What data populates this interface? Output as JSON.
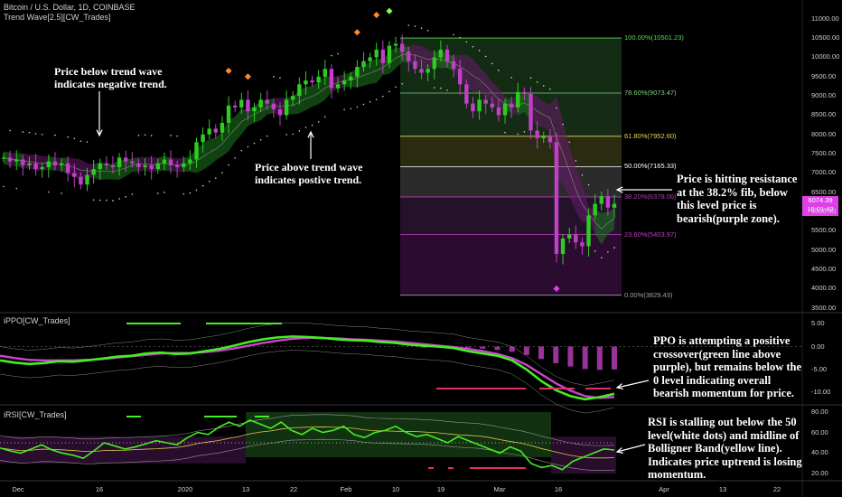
{
  "header": {
    "symbol": "Bitcoin / U.S. Dollar, 1D, COINBASE",
    "indicator": "Trend Wave[2.5][CW_Trades]"
  },
  "panes": {
    "ppo_title": "iPPO[CW_Trades]",
    "rsi_title": "iRSI[CW_Trades]"
  },
  "annotations": {
    "below_trend": "Price below trend wave\nindicates negative trend.",
    "above_trend": "Price above trend wave\nindicates postive trend.",
    "resistance": "Price is hitting resistance\nat the 38.2% fib, below\nthis level price is\nbearish(purple zone).",
    "ppo_note": "PPO is attempting a positive\ncrossover(green line above\npurple), but remains below the\n0 level indicating overall\nbearish momentum for price.",
    "rsi_note": "RSI is stalling out below the 50\nlevel(white dots) and midline of\nBolligner Band(yellow line).\nIndicates price uptrend is losing\nmomentum."
  },
  "price_tag": {
    "price": "6074.39",
    "countdown": "10:01:42"
  },
  "colors": {
    "bull": "#2ecc22",
    "bear": "#c040c8",
    "fib_top": "#2a5a2a",
    "fib_purple": "#3a1840",
    "rsi_zone": "#1f5a1f",
    "rsi_purple": "#4a1850",
    "ppo_green": "#44ee22",
    "ppo_purple": "#cc44cc",
    "red_dash": "#e0306a"
  },
  "chart_data": [
    {
      "type": "candlestick",
      "title": "Bitcoin / U.S. Dollar, 1D, COINBASE",
      "ylim": [
        3400,
        11300
      ],
      "y_ticks": [
        11000,
        10500,
        10000,
        9500,
        9000,
        8500,
        8000,
        7500,
        7000,
        6500,
        6000,
        5500,
        5000,
        4500,
        4000,
        3500
      ],
      "x_ticks": [
        "Dec",
        "16",
        "2020",
        "13",
        "22",
        "Feb",
        "10",
        "19",
        "Mar",
        "16",
        "Apr",
        "13",
        "22"
      ],
      "fib_levels": [
        {
          "label": "100.00%(10501.23)",
          "price": 10501.23,
          "color": "#55dd55"
        },
        {
          "label": "78.60%(9073.47)",
          "price": 9073.47,
          "color": "#7fcf7f"
        },
        {
          "label": "61.80%(7952.60)",
          "price": 7952.6,
          "color": "#e8d84a"
        },
        {
          "label": "50.00%(7165.33)",
          "price": 7165.33,
          "color": "#ffffff"
        },
        {
          "label": "38.20%(6378.06)",
          "price": 6378.06,
          "color": "#b040b0"
        },
        {
          "label": "23.60%(5403.97)",
          "price": 5403.97,
          "color": "#c040c0"
        },
        {
          "label": "0.00%(3829.43)",
          "price": 3829.43,
          "color": "#a0a0a0"
        }
      ],
      "close_series": [
        7400,
        7300,
        7350,
        7200,
        7250,
        7100,
        7150,
        7300,
        7200,
        7250,
        7000,
        6900,
        6700,
        6950,
        7100,
        7250,
        7200,
        7150,
        7400,
        7300,
        7250,
        7150,
        7200,
        7100,
        7250,
        7350,
        7200,
        7150,
        7250,
        7350,
        7800,
        8000,
        8150,
        8050,
        8300,
        8750,
        8700,
        8900,
        8600,
        8700,
        8900,
        8800,
        8650,
        8500,
        8900,
        9000,
        9300,
        9400,
        9350,
        9500,
        9700,
        9200,
        9300,
        9400,
        9500,
        9750,
        9900,
        10000,
        10200,
        9850,
        10300,
        10350,
        10150,
        9900,
        9700,
        9600,
        9700,
        10000,
        10200,
        9900,
        9700,
        9300,
        8800,
        8600,
        8900,
        8800,
        8700,
        8500,
        8800,
        8700,
        9100,
        9050,
        8100,
        7900,
        7950,
        7800,
        4900,
        5300,
        5400,
        5200,
        5100,
        5900,
        6200,
        6400,
        6100,
        6200
      ]
    },
    {
      "type": "line",
      "title": "iPPO[CW_Trades]",
      "ylim": [
        -12.5,
        7
      ],
      "y_ticks": [
        5.0,
        0.0,
        -5.0,
        -10.0
      ],
      "series": [
        {
          "name": "",
          "values": [
            -3,
            -3.5,
            -3.8,
            -3.6,
            -3.2,
            -3.3,
            -3.0,
            -2.6,
            -2.2,
            -2.0,
            -1.5,
            -1.3,
            -1.6,
            -1.5,
            -1.0,
            -0.5,
            0.2,
            1.0,
            1.6,
            2.0,
            2.2,
            2.1,
            1.9,
            1.6,
            1.4,
            1.3,
            1.0,
            0.8,
            0.4,
            0.2,
            0.0,
            -0.3,
            -1.0,
            -1.5,
            -2.0,
            -3.0,
            -5.0,
            -7.5,
            -9.5,
            -10.8,
            -11.5,
            -11.0,
            -10.3
          ]
        },
        {
          "name": "",
          "values": [
            -2.0,
            -2.5,
            -2.9,
            -3.0,
            -3.0,
            -3.0,
            -2.9,
            -2.7,
            -2.4,
            -2.1,
            -1.8,
            -1.5,
            -1.4,
            -1.4,
            -1.2,
            -0.9,
            -0.4,
            0.2,
            0.8,
            1.3,
            1.7,
            1.9,
            1.9,
            1.8,
            1.6,
            1.5,
            1.3,
            1.1,
            0.8,
            0.5,
            0.2,
            -0.1,
            -0.5,
            -1.0,
            -1.6,
            -2.5,
            -4.0,
            -6.0,
            -8.0,
            -9.6,
            -10.8,
            -11.2,
            -11.0
          ]
        }
      ]
    },
    {
      "type": "line",
      "title": "iRSI[CW_Trades]",
      "ylim": [
        15,
        85
      ],
      "y_ticks": [
        80,
        60,
        40,
        20
      ],
      "series": [
        {
          "name": "",
          "values": [
            45,
            42,
            40,
            44,
            48,
            43,
            40,
            38,
            35,
            42,
            50,
            47,
            44,
            46,
            49,
            52,
            50,
            48,
            55,
            60,
            58,
            65,
            70,
            66,
            72,
            68,
            64,
            70,
            62,
            58,
            64,
            60,
            62,
            66,
            58,
            55,
            60,
            62,
            66,
            60,
            56,
            58,
            54,
            50,
            56,
            52,
            48,
            44,
            40,
            46,
            42,
            30,
            26,
            28,
            24,
            32,
            36,
            40,
            44,
            43
          ]
        }
      ]
    }
  ]
}
